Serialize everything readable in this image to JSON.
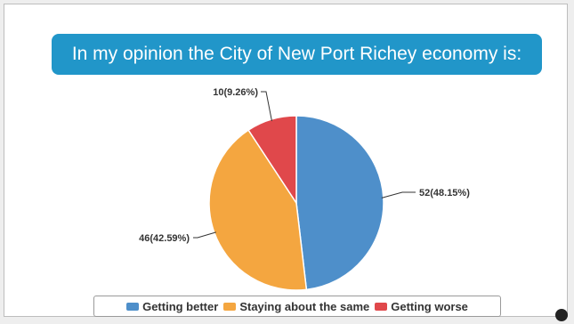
{
  "slide": {
    "title": "In my opinion the City of New Port Richey economy is:"
  },
  "colors": {
    "banner": "#2196c9",
    "slice_border": "#ffffff",
    "leader": "#333333"
  },
  "chart_data": {
    "type": "pie",
    "categories": [
      "Getting better",
      "Staying about the same",
      "Getting worse"
    ],
    "values": [
      52,
      46,
      10
    ],
    "labels": [
      "52(48.15%)",
      "46(42.59%)",
      "10(9.26%)"
    ],
    "colors": [
      "#4e8fca",
      "#f4a640",
      "#e0484b"
    ],
    "legend_position": "bottom",
    "start": "12 o'clock",
    "direction": "clockwise"
  }
}
